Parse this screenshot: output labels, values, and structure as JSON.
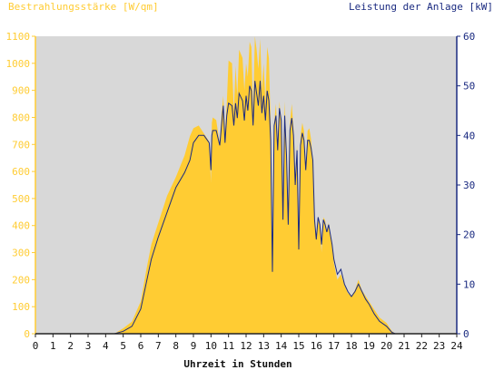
{
  "chart_data": {
    "type": "area",
    "left_axis_title": "Bestrahlungsstärke [W/qm]",
    "right_axis_title": "Leistung der Anlage [kW]",
    "xlabel": "Uhrzeit in Stunden",
    "x_ticks": [
      "0",
      "1",
      "2",
      "3",
      "4",
      "5",
      "6",
      "7",
      "8",
      "9",
      "10",
      "11",
      "12",
      "13",
      "14",
      "15",
      "16",
      "17",
      "18",
      "19",
      "20",
      "21",
      "22",
      "23",
      "24"
    ],
    "xlim": [
      0,
      24
    ],
    "ylim_left": [
      0,
      1100
    ],
    "ylim_right": [
      0,
      60
    ],
    "left_ticks": [
      "0",
      "100",
      "200",
      "300",
      "400",
      "500",
      "600",
      "700",
      "800",
      "900",
      "1000",
      "1100"
    ],
    "right_ticks": [
      "0",
      "10",
      "20",
      "30",
      "40",
      "50",
      "60"
    ],
    "colors": {
      "irradiance": "#ffcc33",
      "power": "#1a2a80",
      "plot_bg": "#d8d8d8",
      "left_axis_text": "#ffcc33",
      "right_axis_text": "#1a2a80"
    },
    "series": [
      {
        "name": "Bestrahlungsstärke [W/qm]",
        "axis": "left",
        "x": [
          0,
          4.5,
          5.0,
          5.5,
          6.0,
          6.3,
          6.6,
          7.0,
          7.5,
          8.0,
          8.5,
          8.8,
          9.0,
          9.3,
          9.6,
          9.9,
          10.0,
          10.05,
          10.1,
          10.3,
          10.5,
          10.6,
          10.7,
          10.8,
          10.9,
          11.0,
          11.2,
          11.3,
          11.4,
          11.5,
          11.6,
          11.8,
          11.9,
          12.0,
          12.1,
          12.2,
          12.3,
          12.4,
          12.5,
          12.6,
          12.7,
          12.8,
          12.9,
          13.0,
          13.1,
          13.2,
          13.3,
          13.4,
          13.5,
          13.6,
          13.7,
          13.8,
          13.9,
          14.0,
          14.1,
          14.2,
          14.3,
          14.4,
          14.5,
          14.6,
          14.7,
          14.8,
          14.9,
          15.0,
          15.1,
          15.2,
          15.3,
          15.4,
          15.5,
          15.6,
          15.7,
          15.8,
          15.9,
          16.0,
          16.1,
          16.2,
          16.3,
          16.4,
          16.5,
          16.6,
          16.7,
          16.8,
          16.9,
          17.0,
          17.2,
          17.4,
          17.6,
          17.8,
          18.0,
          18.2,
          18.4,
          18.6,
          18.8,
          19.0,
          19.3,
          19.6,
          20.0,
          20.3,
          20.5,
          24
        ],
        "values": [
          0,
          0,
          20,
          45,
          120,
          230,
          330,
          410,
          510,
          580,
          660,
          730,
          760,
          770,
          740,
          710,
          560,
          780,
          800,
          790,
          700,
          810,
          880,
          740,
          850,
          1010,
          1000,
          820,
          990,
          880,
          1050,
          1020,
          900,
          1000,
          950,
          1080,
          1060,
          820,
          1100,
          1050,
          980,
          1090,
          900,
          1000,
          860,
          1060,
          1020,
          770,
          240,
          780,
          850,
          700,
          860,
          780,
          420,
          860,
          690,
          400,
          780,
          850,
          760,
          560,
          700,
          320,
          730,
          780,
          750,
          600,
          750,
          760,
          720,
          640,
          420,
          350,
          420,
          400,
          300,
          430,
          420,
          380,
          410,
          360,
          330,
          260,
          200,
          220,
          180,
          150,
          140,
          160,
          200,
          160,
          140,
          120,
          90,
          60,
          40,
          10,
          0,
          0
        ]
      },
      {
        "name": "Leistung der Anlage [kW]",
        "axis": "right",
        "x": [
          0,
          4.5,
          5.0,
          5.5,
          6.0,
          6.3,
          6.6,
          7.0,
          7.5,
          8.0,
          8.5,
          8.8,
          9.0,
          9.3,
          9.6,
          9.9,
          10.0,
          10.05,
          10.1,
          10.3,
          10.5,
          10.6,
          10.7,
          10.8,
          10.9,
          11.0,
          11.2,
          11.3,
          11.4,
          11.5,
          11.6,
          11.8,
          11.9,
          12.0,
          12.1,
          12.2,
          12.3,
          12.4,
          12.5,
          12.6,
          12.7,
          12.8,
          12.9,
          13.0,
          13.1,
          13.2,
          13.3,
          13.4,
          13.5,
          13.6,
          13.7,
          13.8,
          13.9,
          14.0,
          14.1,
          14.2,
          14.3,
          14.4,
          14.5,
          14.6,
          14.7,
          14.8,
          14.9,
          15.0,
          15.1,
          15.2,
          15.3,
          15.4,
          15.5,
          15.6,
          15.7,
          15.8,
          15.9,
          16.0,
          16.1,
          16.2,
          16.3,
          16.4,
          16.5,
          16.6,
          16.7,
          16.8,
          16.9,
          17.0,
          17.2,
          17.4,
          17.6,
          17.8,
          18.0,
          18.2,
          18.4,
          18.6,
          18.8,
          19.0,
          19.3,
          19.6,
          20.0,
          20.3,
          20.5,
          24
        ],
        "values": [
          0,
          0,
          0.5,
          1.5,
          5,
          10,
          15,
          19.5,
          24.5,
          29.5,
          32.5,
          35,
          38.5,
          40,
          40,
          38.5,
          33,
          40,
          41,
          41,
          38,
          42,
          46,
          38.5,
          44,
          46.5,
          46,
          42,
          46.5,
          43.5,
          48.5,
          47,
          43,
          48,
          45,
          50,
          49,
          42,
          51,
          48.5,
          46,
          51,
          44.5,
          48,
          43,
          49,
          47,
          39,
          12.5,
          42,
          44,
          37,
          45.5,
          43,
          23,
          44,
          36,
          22,
          41,
          43.5,
          40,
          30,
          37,
          17,
          38,
          40.5,
          39,
          33,
          39,
          39,
          37.5,
          35,
          23,
          19,
          23.5,
          22,
          18,
          23,
          22,
          20.5,
          22,
          20,
          18,
          15,
          12,
          13,
          10,
          8.5,
          7.5,
          8.5,
          10,
          8.5,
          7,
          6,
          4,
          2.5,
          1.5,
          0.3,
          0,
          0
        ]
      }
    ]
  }
}
